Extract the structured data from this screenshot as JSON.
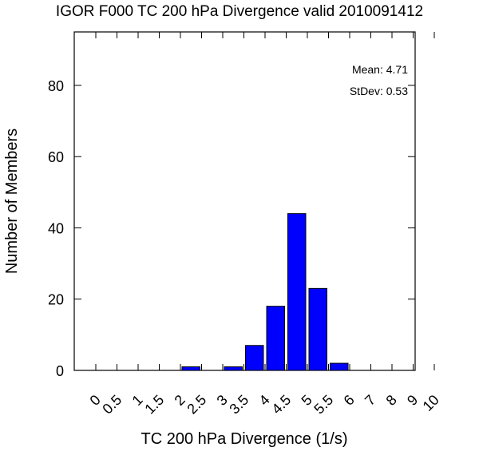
{
  "chart_data": {
    "type": "bar",
    "title": "IGOR F000 TC 200 hPa Divergence valid 2010091412",
    "xlabel": "TC 200 hPa Divergence (1/s)",
    "ylabel": "Number of Members",
    "x_tick_labels": [
      "0",
      "0.5",
      "1",
      "1.5",
      "2",
      "2.5",
      "3",
      "3.5",
      "4",
      "4.5",
      "5",
      "5.5",
      "6",
      "7",
      "8",
      "9",
      "10"
    ],
    "y_ticks": [
      0,
      20,
      40,
      60,
      80
    ],
    "ylim": [
      0,
      95
    ],
    "bar_color": "#0000ff",
    "bars": [
      {
        "from": "2",
        "to": "2.5",
        "value": 1
      },
      {
        "from": "3",
        "to": "3.5",
        "value": 1
      },
      {
        "from": "3.5",
        "to": "4",
        "value": 7
      },
      {
        "from": "4",
        "to": "4.5",
        "value": 18
      },
      {
        "from": "4.5",
        "to": "5",
        "value": 44
      },
      {
        "from": "5",
        "to": "5.5",
        "value": 23
      },
      {
        "from": "5.5",
        "to": "6",
        "value": 2
      }
    ],
    "stats": {
      "mean_label": "Mean: 4.71",
      "stdev_label": "StDev: 0.53"
    },
    "grid": false
  }
}
